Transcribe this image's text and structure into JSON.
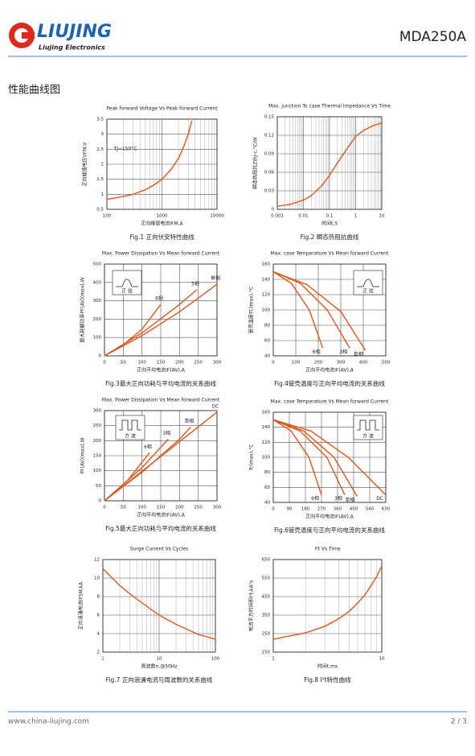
{
  "header": {
    "brand": "LIUJING",
    "subtitle": "Liujing Electronics",
    "model": "MDA250A"
  },
  "section": "性能曲线图",
  "footer": {
    "url": "www.china-liujing.com",
    "page": "2 / 3"
  },
  "chart_data": [
    {
      "type": "line",
      "title": "Peak forward Voltage Vs Peak forward Current",
      "xlabel": "正向峰值电流IFM,A",
      "ylabel": "正向峰值电压VFM,V",
      "caption": "Fig.1 正向伏安特性曲线",
      "xlog": true,
      "grid": true,
      "minor_grid": true,
      "xlim": [
        100,
        10000
      ],
      "ylim": [
        0.5,
        3.5
      ],
      "xticks": [
        100,
        1000,
        10000
      ],
      "yticks": [
        0.5,
        1,
        1.5,
        2,
        2.5,
        3,
        3.5
      ],
      "annotations": [
        "TJ=150°C"
      ],
      "series": [
        {
          "color": "#e0561b",
          "x": [
            100,
            200,
            300,
            500,
            700,
            1000,
            1500,
            2000,
            2500,
            3000,
            3500
          ],
          "values": [
            0.83,
            0.93,
            1.0,
            1.15,
            1.3,
            1.5,
            1.85,
            2.2,
            2.6,
            3.0,
            3.45
          ]
        }
      ]
    },
    {
      "type": "line",
      "title": "Max. junction To case Thermal Impedance Vs Time",
      "xlabel": "时间t,S",
      "ylabel": "瞬态热阻抗Zthj-c,°C/W",
      "caption": "Fig.2 瞬态热阻抗曲线",
      "xlog": true,
      "grid": true,
      "minor_grid": true,
      "xlim": [
        0.001,
        10
      ],
      "ylim": [
        0,
        0.15
      ],
      "xticks": [
        0.001,
        0.01,
        0.1,
        1,
        10
      ],
      "yticks": [
        0,
        0.03,
        0.06,
        0.09,
        0.12,
        0.15
      ],
      "annotations": [],
      "series": [
        {
          "color": "#e0561b",
          "x": [
            0.001,
            0.003,
            0.01,
            0.02,
            0.05,
            0.1,
            0.2,
            0.5,
            1,
            2,
            5,
            10
          ],
          "values": [
            0.005,
            0.008,
            0.015,
            0.022,
            0.038,
            0.055,
            0.075,
            0.1,
            0.118,
            0.128,
            0.136,
            0.14
          ]
        }
      ]
    },
    {
      "type": "line",
      "title": "Max. Power Dissipation Vs Mean forward Current",
      "xlabel": "正向平均电流IF(AV),A",
      "ylabel": "最大耗散功率PF(AV)(max),W",
      "caption": "Fig.3最大正向功耗与平均电流的关系曲线",
      "xlog": false,
      "grid": true,
      "minor_grid": false,
      "xlim": [
        0,
        300
      ],
      "ylim": [
        0,
        500
      ],
      "xticks": [
        0,
        50,
        100,
        150,
        200,
        250,
        300
      ],
      "yticks": [
        0,
        100,
        200,
        300,
        400,
        500
      ],
      "annotations": [
        "正 弦"
      ],
      "series": [
        {
          "name": "6相",
          "color": "#e0561b",
          "x": [
            0,
            50,
            100,
            150
          ],
          "values": [
            0,
            60,
            145,
            280
          ]
        },
        {
          "name": "3相",
          "color": "#e0561b",
          "x": [
            0,
            100,
            200,
            246
          ],
          "values": [
            0,
            125,
            280,
            360
          ]
        },
        {
          "name": "单相",
          "color": "#e0561b",
          "x": [
            0,
            100,
            200,
            300
          ],
          "values": [
            0,
            110,
            240,
            390
          ]
        }
      ]
    },
    {
      "type": "line",
      "title": "Max. case Temperature Vs Mean forward Current",
      "xlabel": "正向平均电流IF(AV),A",
      "ylabel": "管壳温度TC(max),°C",
      "caption": "Fig.4管壳温度与正向平均电流的关系曲线",
      "xlog": false,
      "grid": true,
      "minor_grid": false,
      "xlim": [
        0,
        500
      ],
      "ylim": [
        40,
        160
      ],
      "xticks": [
        0,
        100,
        200,
        300,
        400,
        500
      ],
      "yticks": [
        40,
        60,
        80,
        100,
        120,
        140,
        160
      ],
      "annotations": [
        "正 弦"
      ],
      "series": [
        {
          "name": "6相",
          "color": "#e0561b",
          "x": [
            0,
            80,
            160,
            220
          ],
          "values": [
            150,
            135,
            100,
            50
          ]
        },
        {
          "name": "3相",
          "color": "#e0561b",
          "x": [
            0,
            120,
            240,
            340
          ],
          "values": [
            150,
            135,
            100,
            50
          ]
        },
        {
          "name": "单相",
          "color": "#e0561b",
          "x": [
            0,
            150,
            300,
            410
          ],
          "values": [
            150,
            133,
            98,
            47
          ]
        }
      ]
    },
    {
      "type": "line",
      "title": "Max. Power Dissipation Vs Mean forward Current",
      "xlabel": "正向平均电流IF(AV),A",
      "ylabel": "PF(AV)(max),W",
      "caption": "Fig.5最大正向功耗与平均电流的关系曲线",
      "xlog": false,
      "grid": true,
      "minor_grid": false,
      "xlim": [
        0,
        300
      ],
      "ylim": [
        0,
        300
      ],
      "xticks": [
        0,
        50,
        100,
        150,
        200,
        250,
        300
      ],
      "yticks": [
        0,
        50,
        100,
        150,
        200,
        250,
        300
      ],
      "annotations": [
        "方 波"
      ],
      "series": [
        {
          "name": "6相",
          "color": "#e0561b",
          "x": [
            0,
            60,
            120
          ],
          "values": [
            0,
            65,
            160
          ]
        },
        {
          "name": "3相",
          "color": "#e0561b",
          "x": [
            0,
            100,
            170
          ],
          "values": [
            0,
            110,
            205
          ]
        },
        {
          "name": "单相",
          "color": "#e0561b",
          "x": [
            0,
            100,
            200,
            230
          ],
          "values": [
            0,
            95,
            205,
            245
          ]
        },
        {
          "name": "DC",
          "color": "#e0561b",
          "x": [
            0,
            300
          ],
          "values": [
            0,
            295
          ]
        }
      ]
    },
    {
      "type": "line",
      "title": "Max. case Temperature Vs Mean forward Current",
      "xlabel": "正向平均电流IF(AV),A",
      "ylabel": "Tc(max),°C",
      "caption": "Fig.6管壳温度与正向平均电流的关系曲线",
      "xlog": false,
      "grid": true,
      "minor_grid": false,
      "xlim": [
        0,
        630
      ],
      "ylim": [
        40,
        160
      ],
      "xticks": [
        0,
        90,
        180,
        270,
        360,
        450,
        540,
        630
      ],
      "yticks": [
        40,
        60,
        80,
        100,
        120,
        140,
        160
      ],
      "annotations": [
        "方 波"
      ],
      "series": [
        {
          "name": "6相",
          "color": "#e0561b",
          "x": [
            0,
            100,
            200,
            270
          ],
          "values": [
            150,
            135,
            100,
            50
          ]
        },
        {
          "name": "3相",
          "color": "#e0561b",
          "x": [
            0,
            150,
            300,
            400
          ],
          "values": [
            150,
            135,
            100,
            50
          ]
        },
        {
          "name": "单相",
          "color": "#e0561b",
          "x": [
            0,
            170,
            340,
            470
          ],
          "values": [
            150,
            135,
            100,
            48
          ]
        },
        {
          "name": "DC",
          "color": "#e0561b",
          "x": [
            0,
            210,
            420,
            630
          ],
          "values": [
            150,
            135,
            100,
            50
          ]
        }
      ]
    },
    {
      "type": "line",
      "title": "Surge Current Vs Cycles",
      "xlabel": "周波数n,@50Hz",
      "ylabel": "正向浪涌电流IFSM,kA",
      "caption": "Fig.7 正向浪涌电流与周波数的关系曲线",
      "xlog": true,
      "grid": true,
      "minor_grid": true,
      "xlim": [
        1,
        100
      ],
      "ylim": [
        2,
        12
      ],
      "xticks": [
        1,
        10,
        100
      ],
      "yticks": [
        2,
        4,
        6,
        8,
        10,
        12
      ],
      "annotations": [],
      "series": [
        {
          "color": "#e0561b",
          "x": [
            1,
            2,
            3,
            5,
            10,
            20,
            50,
            100
          ],
          "values": [
            11,
            9.2,
            8.3,
            7.3,
            6.0,
            5.0,
            3.9,
            3.4
          ]
        }
      ]
    },
    {
      "type": "line",
      "title": "I²t Vs.Time",
      "xlabel": "时间t,ms",
      "ylabel": "电流平方时间积I²t,kA²s",
      "caption": "Fig.8 I²t特性曲线",
      "xlog": true,
      "grid": true,
      "minor_grid": true,
      "xlim": [
        1,
        10
      ],
      "ylim": [
        150,
        650
      ],
      "xticks": [
        1,
        10
      ],
      "yticks": [
        150,
        250,
        350,
        450,
        550,
        650
      ],
      "annotations": [],
      "series": [
        {
          "color": "#e0561b",
          "x": [
            1,
            2,
            3,
            4,
            5,
            6,
            7,
            8,
            9,
            10
          ],
          "values": [
            220,
            255,
            290,
            330,
            370,
            415,
            460,
            510,
            560,
            615
          ]
        }
      ]
    }
  ]
}
